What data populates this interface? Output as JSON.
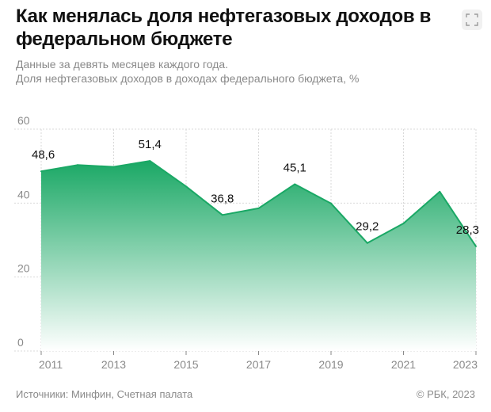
{
  "header": {
    "title": "Как менялась доля нефтегазовых доходов в федеральном бюджете",
    "subtitle_line1": "Данные за девять месяцев каждого года.",
    "subtitle_line2": "Доля нефтегазовых доходов в доходах федерального бюджета, %",
    "expand_icon": "expand-icon"
  },
  "footer": {
    "sources": "Источники: Минфин, Счетная палата",
    "copyright": "© РБК, 2023"
  },
  "colors": {
    "line": "#1aa865",
    "fill_top": "#1aa865",
    "fill_bottom": "#ffffff",
    "grid": "#d9d9d9",
    "tick": "#8a8a8a",
    "label": "#111111"
  },
  "chart_data": {
    "type": "area",
    "x": [
      2011,
      2012,
      2013,
      2014,
      2015,
      2016,
      2017,
      2018,
      2019,
      2020,
      2021,
      2022,
      2023
    ],
    "values": [
      48.6,
      50.3,
      49.8,
      51.4,
      44.5,
      36.8,
      38.6,
      45.1,
      39.9,
      29.2,
      34.5,
      43.1,
      28.3
    ],
    "data_labels": [
      {
        "x": 2011,
        "text": "48,6"
      },
      {
        "x": 2014,
        "text": "51,4"
      },
      {
        "x": 2016,
        "text": "36,8"
      },
      {
        "x": 2018,
        "text": "45,1"
      },
      {
        "x": 2020,
        "text": "29,2"
      },
      {
        "x": 2023,
        "text": "28,3"
      }
    ],
    "x_ticks": [
      2011,
      2013,
      2015,
      2017,
      2019,
      2021,
      2023
    ],
    "x_tick_labels": [
      "2011",
      "2013",
      "2015",
      "2017",
      "2019",
      "2021",
      "2023"
    ],
    "y_ticks": [
      0,
      20,
      40,
      60
    ],
    "y_tick_labels": [
      "0",
      "20",
      "40",
      "60"
    ],
    "ylim": [
      0,
      60
    ],
    "xlim": [
      2011,
      2023
    ],
    "grid": true,
    "legend": "none"
  }
}
